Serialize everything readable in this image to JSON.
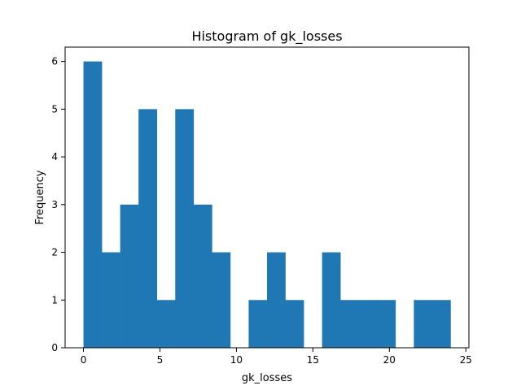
{
  "chart_data": {
    "type": "histogram",
    "title": "Histogram of gk_losses",
    "xlabel": "gk_losses",
    "ylabel": "Frequency",
    "bar_color": "#1f77b4",
    "bins": {
      "start": 0,
      "end": 24,
      "count": 20
    },
    "counts": [
      6,
      2,
      3,
      5,
      1,
      5,
      3,
      2,
      0,
      1,
      2,
      1,
      0,
      2,
      1,
      1,
      1,
      0,
      1,
      1
    ],
    "xlim": [
      -1.2,
      25.2
    ],
    "ylim": [
      0,
      6.3
    ],
    "xticks": [
      0,
      5,
      10,
      15,
      20,
      25
    ],
    "yticks": [
      0,
      1,
      2,
      3,
      4,
      5,
      6
    ],
    "grid": false
  }
}
